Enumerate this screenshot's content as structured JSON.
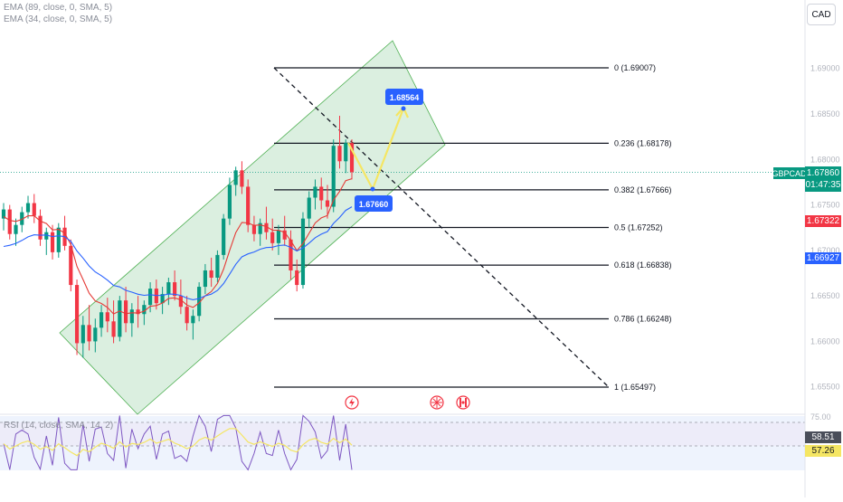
{
  "indicators": {
    "ema1": "EMA (89, close, 0, SMA, 5)",
    "ema2": "EMA (34, close, 0, SMA, 5)",
    "rsi": "RSI (14, close, SMA, 14, 2)"
  },
  "currency_button": "CAD",
  "symbol": "GBPCAD",
  "current_price": "1.67860",
  "countdown": "01:47:35",
  "ema_tags": {
    "red": "1.67322",
    "blue": "1.66927"
  },
  "rsi_tags": {
    "rsi": "58.51",
    "ma": "57.26"
  },
  "rsi_axis_label": "75.00",
  "colors": {
    "up": "#089981",
    "down": "#f23645",
    "ema_fast": "#e53935",
    "ema_slow": "#2962ff",
    "channel_fill": "#cfe9d6",
    "channel_stroke": "#4caf50",
    "projection": "#f5e663",
    "callout": "#2962ff",
    "rsi_line": "#7e57c2",
    "rsi_ma": "#f5e663",
    "rsi_band": "#ede7f6"
  },
  "chart_data": {
    "type": "candlestick",
    "instrument": "GBPCAD",
    "price_axis": {
      "range": [
        1.65,
        1.695
      ],
      "ticks": [
        {
          "value": 1.69,
          "label": "1.69000"
        },
        {
          "value": 1.685,
          "label": "1.68500"
        },
        {
          "value": 1.68,
          "label": "1.68000"
        },
        {
          "value": 1.675,
          "label": "1.67500"
        },
        {
          "value": 1.67,
          "label": "1.67000"
        },
        {
          "value": 1.665,
          "label": "1.66500"
        },
        {
          "value": 1.66,
          "label": "1.66000"
        },
        {
          "value": 1.655,
          "label": "1.65500"
        }
      ]
    },
    "fibonacci_levels": [
      {
        "ratio": "0",
        "price": 1.69007,
        "label": "0 (1.69007)"
      },
      {
        "ratio": "0.236",
        "price": 1.68178,
        "label": "0.236 (1.68178)"
      },
      {
        "ratio": "0.382",
        "price": 1.67666,
        "label": "0.382 (1.67666)"
      },
      {
        "ratio": "0.5",
        "price": 1.67252,
        "label": "0.5 (1.67252)"
      },
      {
        "ratio": "0.618",
        "price": 1.66838,
        "label": "0.618 (1.66838)"
      },
      {
        "ratio": "0.786",
        "price": 1.66248,
        "label": "0.786 (1.66248)"
      },
      {
        "ratio": "1",
        "price": 1.65497,
        "label": "1 (1.65497)"
      }
    ],
    "projection_callouts": [
      {
        "label": "1.67660",
        "price": 1.6766
      },
      {
        "label": "1.68564",
        "price": 1.68564
      }
    ],
    "current_price": 1.6786,
    "ema_values": {
      "ema34": 1.67322,
      "ema89": 1.66927
    },
    "rsi": {
      "value": 58.51,
      "ma": 57.26,
      "upper_band": 75
    },
    "candles": [
      [
        1.6735,
        1.6752,
        1.6722,
        1.6745
      ],
      [
        1.6745,
        1.675,
        1.6712,
        1.6718
      ],
      [
        1.6718,
        1.6735,
        1.6705,
        1.6728
      ],
      [
        1.6728,
        1.6748,
        1.672,
        1.6742
      ],
      [
        1.6742,
        1.676,
        1.6735,
        1.6752
      ],
      [
        1.6752,
        1.6762,
        1.673,
        1.6738
      ],
      [
        1.6738,
        1.6745,
        1.6705,
        1.6712
      ],
      [
        1.6712,
        1.6725,
        1.6695,
        1.672
      ],
      [
        1.672,
        1.6728,
        1.669,
        1.6698
      ],
      [
        1.6698,
        1.673,
        1.6692,
        1.6725
      ],
      [
        1.6725,
        1.6738,
        1.67,
        1.6705
      ],
      [
        1.6705,
        1.6712,
        1.6655,
        1.6662
      ],
      [
        1.6662,
        1.6668,
        1.6585,
        1.6598
      ],
      [
        1.6598,
        1.6628,
        1.6582,
        1.6618
      ],
      [
        1.6618,
        1.664,
        1.659,
        1.66
      ],
      [
        1.66,
        1.6625,
        1.6588,
        1.6615
      ],
      [
        1.6615,
        1.664,
        1.6605,
        1.6632
      ],
      [
        1.6632,
        1.6648,
        1.661,
        1.6622
      ],
      [
        1.6622,
        1.6645,
        1.6598,
        1.6605
      ],
      [
        1.6605,
        1.665,
        1.66,
        1.6645
      ],
      [
        1.6645,
        1.666,
        1.661,
        1.662
      ],
      [
        1.662,
        1.6642,
        1.6605,
        1.6635
      ],
      [
        1.6635,
        1.665,
        1.6615,
        1.663
      ],
      [
        1.663,
        1.6645,
        1.6618,
        1.664
      ],
      [
        1.664,
        1.6665,
        1.6632,
        1.6658
      ],
      [
        1.6658,
        1.6668,
        1.6635,
        1.6642
      ],
      [
        1.6642,
        1.666,
        1.663,
        1.6652
      ],
      [
        1.6652,
        1.667,
        1.664,
        1.6665
      ],
      [
        1.6665,
        1.6678,
        1.6645,
        1.665
      ],
      [
        1.665,
        1.6668,
        1.663,
        1.6638
      ],
      [
        1.6638,
        1.665,
        1.6612,
        1.662
      ],
      [
        1.662,
        1.6635,
        1.6602,
        1.6628
      ],
      [
        1.6628,
        1.6665,
        1.6622,
        1.666
      ],
      [
        1.666,
        1.6685,
        1.6652,
        1.6678
      ],
      [
        1.6678,
        1.6692,
        1.666,
        1.667
      ],
      [
        1.667,
        1.67,
        1.6665,
        1.6695
      ],
      [
        1.6695,
        1.674,
        1.669,
        1.6735
      ],
      [
        1.6735,
        1.678,
        1.6728,
        1.6772
      ],
      [
        1.6772,
        1.6792,
        1.676,
        1.6788
      ],
      [
        1.6788,
        1.6798,
        1.6762,
        1.677
      ],
      [
        1.677,
        1.6778,
        1.672,
        1.6728
      ],
      [
        1.6728,
        1.6738,
        1.671,
        1.6718
      ],
      [
        1.6718,
        1.6735,
        1.6705,
        1.673
      ],
      [
        1.673,
        1.6748,
        1.6712,
        1.672
      ],
      [
        1.672,
        1.6735,
        1.67,
        1.6708
      ],
      [
        1.6708,
        1.6728,
        1.6695,
        1.6722
      ],
      [
        1.6722,
        1.6738,
        1.6705,
        1.6712
      ],
      [
        1.6712,
        1.6722,
        1.6668,
        1.6678
      ],
      [
        1.6678,
        1.669,
        1.6655,
        1.6662
      ],
      [
        1.6662,
        1.6742,
        1.6658,
        1.6735
      ],
      [
        1.6735,
        1.6765,
        1.6725,
        1.6758
      ],
      [
        1.6758,
        1.6778,
        1.6745,
        1.677
      ],
      [
        1.677,
        1.678,
        1.6745,
        1.6755
      ],
      [
        1.6755,
        1.6772,
        1.6735,
        1.6748
      ],
      [
        1.6748,
        1.6822,
        1.6742,
        1.6815
      ],
      [
        1.6815,
        1.6848,
        1.679,
        1.6798
      ],
      [
        1.6798,
        1.6822,
        1.6785,
        1.6818
      ],
      [
        1.6818,
        1.6822,
        1.6778,
        1.6786
      ]
    ]
  }
}
